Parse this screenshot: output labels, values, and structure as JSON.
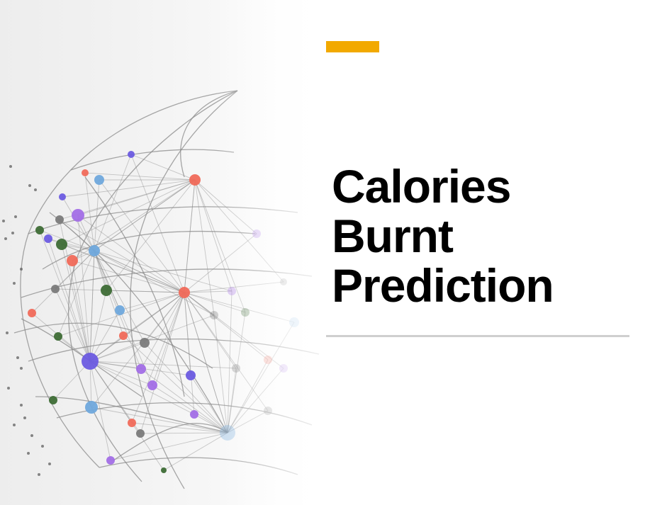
{
  "slide": {
    "title_lines": [
      "Calories",
      "Burnt",
      "Prediction"
    ]
  },
  "colors": {
    "accent": "#f2a900",
    "title": "#000000",
    "divider": "#cfcfcf",
    "network_lines": "#8a8a8a",
    "node_palette": [
      "#f06a5a",
      "#6fa8dc",
      "#a26ee6",
      "#3d6b35",
      "#7a7a7a",
      "#6b5be0"
    ]
  },
  "decor": {
    "image": "network-globe-graphic"
  }
}
